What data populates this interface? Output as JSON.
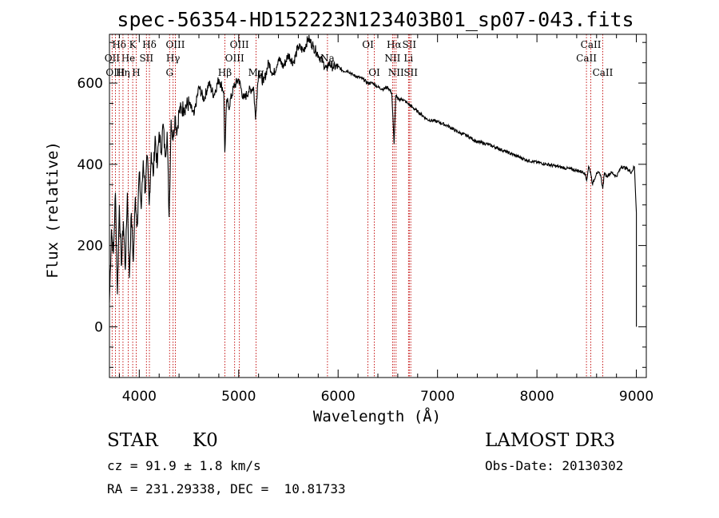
{
  "chart_data": {
    "type": "line",
    "title": "spec-56354-HD152223N123403B01_sp07-043.fits",
    "xlabel": "Wavelength (Å)",
    "ylabel": "Flux (relative)",
    "xlim": [
      3700,
      9100
    ],
    "ylim": [
      -125,
      720
    ],
    "xticks": [
      4000,
      5000,
      6000,
      7000,
      8000,
      9000
    ],
    "xtick_labels": [
      "4000",
      "5000",
      "6000",
      "7000",
      "8000",
      "9000"
    ],
    "yticks": [
      0,
      200,
      400,
      600
    ],
    "ytick_labels": [
      "0",
      "200",
      "400",
      "600"
    ],
    "series": [
      {
        "name": "flux",
        "x": [
          3700,
          3720,
          3740,
          3760,
          3780,
          3800,
          3820,
          3840,
          3860,
          3880,
          3900,
          3920,
          3940,
          3960,
          3980,
          4000,
          4020,
          4040,
          4060,
          4080,
          4100,
          4120,
          4140,
          4160,
          4180,
          4200,
          4220,
          4240,
          4260,
          4280,
          4300,
          4320,
          4340,
          4360,
          4380,
          4400,
          4450,
          4500,
          4550,
          4600,
          4650,
          4700,
          4750,
          4800,
          4850,
          4860,
          4880,
          4900,
          4950,
          5000,
          5050,
          5100,
          5150,
          5170,
          5180,
          5200,
          5250,
          5300,
          5350,
          5400,
          5450,
          5500,
          5550,
          5600,
          5650,
          5700,
          5750,
          5800,
          5850,
          5890,
          5900,
          5950,
          6000,
          6050,
          6100,
          6150,
          6200,
          6250,
          6300,
          6350,
          6400,
          6450,
          6500,
          6540,
          6563,
          6580,
          6600,
          6650,
          6700,
          6750,
          6800,
          6900,
          7000,
          7100,
          7200,
          7300,
          7400,
          7500,
          7600,
          7700,
          7800,
          7900,
          8000,
          8100,
          8200,
          8300,
          8400,
          8480,
          8500,
          8520,
          8540,
          8560,
          8600,
          8640,
          8662,
          8680,
          8700,
          8750,
          8800,
          8850,
          8900,
          8950,
          8980,
          9000,
          9000
        ],
        "y": [
          60,
          240,
          180,
          330,
          80,
          300,
          150,
          260,
          140,
          330,
          120,
          280,
          160,
          320,
          250,
          380,
          290,
          410,
          330,
          420,
          300,
          430,
          370,
          470,
          390,
          480,
          430,
          500,
          420,
          480,
          270,
          510,
          460,
          520,
          480,
          530,
          540,
          550,
          520,
          590,
          560,
          600,
          570,
          610,
          580,
          430,
          560,
          540,
          590,
          610,
          560,
          580,
          590,
          510,
          560,
          630,
          600,
          650,
          620,
          660,
          640,
          670,
          650,
          690,
          680,
          710,
          690,
          670,
          650,
          630,
          650,
          640,
          640,
          630,
          630,
          620,
          615,
          610,
          600,
          600,
          590,
          585,
          590,
          575,
          450,
          570,
          560,
          560,
          550,
          540,
          530,
          510,
          505,
          495,
          480,
          470,
          455,
          450,
          440,
          430,
          420,
          410,
          405,
          400,
          395,
          390,
          385,
          380,
          360,
          395,
          380,
          350,
          380,
          375,
          340,
          380,
          370,
          380,
          370,
          395,
          390,
          380,
          395,
          280,
          0
        ]
      }
    ],
    "line_markers": [
      {
        "label": "Hδ",
        "x": 3798,
        "row": 1
      },
      {
        "label": "OII",
        "x": 3727,
        "row": 2
      },
      {
        "label": "OIII",
        "x": 3760,
        "row": 3
      },
      {
        "label": "K",
        "x": 3934,
        "row": 1
      },
      {
        "label": "He",
        "x": 3889,
        "row": 2
      },
      {
        "label": "Hη",
        "x": 3836,
        "row": 3
      },
      {
        "label": "SII",
        "x": 4072,
        "row": 2
      },
      {
        "label": "H",
        "x": 3969,
        "row": 3
      },
      {
        "label": "Hδ",
        "x": 4102,
        "row": 1
      },
      {
        "label": "OIII",
        "x": 4363,
        "row": 1
      },
      {
        "label": "Hγ",
        "x": 4340,
        "row": 2
      },
      {
        "label": "G",
        "x": 4305,
        "row": 3
      },
      {
        "label": "OIII",
        "x": 5007,
        "row": 1
      },
      {
        "label": "OIII",
        "x": 4959,
        "row": 2
      },
      {
        "label": "Hβ",
        "x": 4861,
        "row": 3
      },
      {
        "label": "Mg",
        "x": 5175,
        "row": 3
      },
      {
        "label": "Na",
        "x": 5893,
        "row": 2
      },
      {
        "label": "OI",
        "x": 6300,
        "row": 1
      },
      {
        "label": "OI",
        "x": 6364,
        "row": 3
      },
      {
        "label": "Hα",
        "x": 6563,
        "row": 1
      },
      {
        "label": "NII",
        "x": 6548,
        "row": 2
      },
      {
        "label": "NII",
        "x": 6583,
        "row": 3
      },
      {
        "label": "SII",
        "x": 6716,
        "row": 1
      },
      {
        "label": "Li",
        "x": 6708,
        "row": 2
      },
      {
        "label": "SII",
        "x": 6731,
        "row": 3
      },
      {
        "label": "CaII",
        "x": 8542,
        "row": 1
      },
      {
        "label": "CaII",
        "x": 8498,
        "row": 2
      },
      {
        "label": "CaII",
        "x": 8662,
        "row": 3
      }
    ]
  },
  "info": {
    "object_class": "STAR",
    "subclass": "K0",
    "survey": "LAMOST DR3",
    "redshift": "cz = 91.9 ± 1.8 km/s",
    "obs_date": "Obs-Date: 20130302",
    "coords": "RA = 231.29338, DEC =  10.81733"
  },
  "colors": {
    "line": "#000000",
    "marker": "#c00000",
    "background": "#ffffff"
  }
}
